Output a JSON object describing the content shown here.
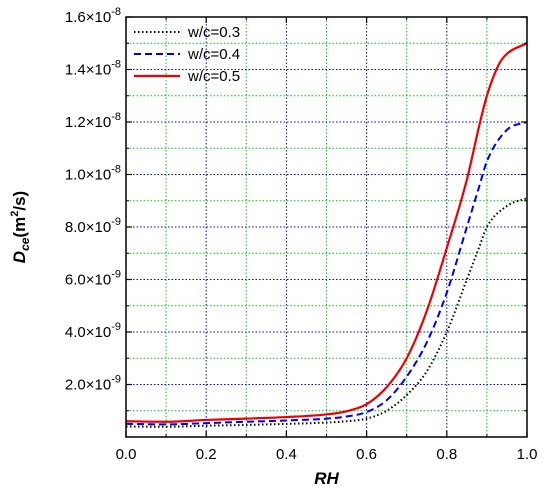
{
  "chart_data": {
    "type": "line",
    "xlabel": "RH",
    "ylabel": {
      "main": "D",
      "sub": "ce",
      "unit_pre": "(m",
      "unit_sup": "2",
      "unit_post": "/s)"
    },
    "xlim": [
      0,
      1
    ],
    "ylim": [
      0,
      1.6e-08
    ],
    "x_ticks": [
      0.0,
      0.2,
      0.4,
      0.6,
      0.8,
      1.0
    ],
    "x_tick_labels": [
      "0.0",
      "0.2",
      "0.4",
      "0.6",
      "0.8",
      "1.0"
    ],
    "y_ticks": [
      2e-09,
      4e-09,
      6e-09,
      8e-09,
      1e-08,
      1.2e-08,
      1.4e-08,
      1.6e-08
    ],
    "y_tick_labels": [
      {
        "mantissa": "2.0",
        "exp": "-9"
      },
      {
        "mantissa": "4.0",
        "exp": "-9"
      },
      {
        "mantissa": "6.0",
        "exp": "-9"
      },
      {
        "mantissa": "8.0",
        "exp": "-9"
      },
      {
        "mantissa": "1.0",
        "exp": "-8"
      },
      {
        "mantissa": "1.2",
        "exp": "-8"
      },
      {
        "mantissa": "1.4",
        "exp": "-8"
      },
      {
        "mantissa": "1.6",
        "exp": "-8"
      }
    ],
    "grid": {
      "major_x": true,
      "major_y": true,
      "minor_x": true,
      "minor_y": true,
      "major_color": "#0000ff",
      "minor_color": "#00cc00"
    },
    "legend_position": "top-left",
    "series": [
      {
        "name": "w/c=0.3",
        "color": "#000000",
        "style": "dotted",
        "x": [
          0,
          0.1,
          0.2,
          0.3,
          0.4,
          0.5,
          0.55,
          0.6,
          0.65,
          0.7,
          0.75,
          0.8,
          0.85,
          0.88,
          0.9,
          0.95,
          1.0
        ],
        "y": [
          4e-10,
          3.9e-10,
          4.3e-10,
          4.6e-10,
          5e-10,
          5.5e-10,
          6e-10,
          7e-10,
          1e-09,
          1.6e-09,
          2.5e-09,
          4e-09,
          6e-09,
          7.2e-09,
          8e-09,
          8.8e-09,
          9.1e-09
        ]
      },
      {
        "name": "w/c=0.4",
        "color": "#0000ee",
        "style": "dashed",
        "x": [
          0,
          0.1,
          0.2,
          0.3,
          0.4,
          0.5,
          0.55,
          0.6,
          0.65,
          0.7,
          0.75,
          0.8,
          0.85,
          0.88,
          0.9,
          0.95,
          1.0
        ],
        "y": [
          5e-10,
          4.8e-10,
          5.3e-10,
          5.8e-10,
          6.3e-10,
          7e-10,
          7.8e-10,
          9.5e-10,
          1.4e-09,
          2.3e-09,
          3.6e-09,
          5.5e-09,
          8e-09,
          9.5e-09,
          1.05e-08,
          1.17e-08,
          1.2e-08
        ]
      },
      {
        "name": "w/c=0.5",
        "color": "#ee0000",
        "style": "solid",
        "x": [
          0,
          0.1,
          0.2,
          0.3,
          0.4,
          0.5,
          0.55,
          0.6,
          0.65,
          0.7,
          0.75,
          0.8,
          0.85,
          0.88,
          0.9,
          0.93,
          0.95,
          1.0
        ],
        "y": [
          6e-10,
          5.8e-10,
          6.5e-10,
          7e-10,
          7.6e-10,
          8.6e-10,
          9.8e-10,
          1.25e-09,
          1.9e-09,
          3e-09,
          4.8e-09,
          7.2e-09,
          9.8e-09,
          1.18e-08,
          1.3e-08,
          1.42e-08,
          1.46e-08,
          1.5e-08
        ]
      }
    ]
  }
}
